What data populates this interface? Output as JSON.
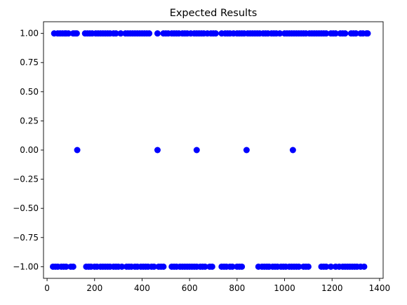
{
  "chart_data": {
    "type": "scatter",
    "title": "Expected Results",
    "xlabel": "",
    "ylabel": "",
    "xlim": [
      -15,
      1415
    ],
    "ylim": [
      -1.1,
      1.1
    ],
    "x_ticks": [
      0,
      200,
      400,
      600,
      800,
      1000,
      1200,
      1400
    ],
    "y_ticks": [
      1.0,
      0.75,
      0.5,
      0.25,
      0.0,
      -0.25,
      -0.5,
      -0.75,
      -1.0
    ],
    "y_tick_labels": [
      "1.00",
      "0.75",
      "0.50",
      "0.25",
      "0.00",
      "−0.25",
      "−0.50",
      "−0.75",
      "−1.00"
    ],
    "grid": false,
    "marker_color": "#0000ff",
    "series": [
      {
        "points": [
          [
            30,
            1
          ],
          [
            45,
            1
          ],
          [
            55,
            1
          ],
          [
            65,
            1
          ],
          [
            75,
            1
          ],
          [
            80,
            1
          ],
          [
            90,
            1
          ],
          [
            110,
            1
          ],
          [
            118,
            1
          ],
          [
            125,
            1
          ],
          [
            160,
            1
          ],
          [
            170,
            1
          ],
          [
            180,
            1
          ],
          [
            190,
            1
          ],
          [
            205,
            1
          ],
          [
            215,
            1
          ],
          [
            225,
            1
          ],
          [
            235,
            1
          ],
          [
            245,
            1
          ],
          [
            255,
            1
          ],
          [
            265,
            1
          ],
          [
            280,
            1
          ],
          [
            290,
            1
          ],
          [
            310,
            1
          ],
          [
            330,
            1
          ],
          [
            340,
            1
          ],
          [
            350,
            1
          ],
          [
            360,
            1
          ],
          [
            370,
            1
          ],
          [
            380,
            1
          ],
          [
            390,
            1
          ],
          [
            400,
            1
          ],
          [
            410,
            1
          ],
          [
            420,
            1
          ],
          [
            430,
            1
          ],
          [
            465,
            1
          ],
          [
            490,
            1
          ],
          [
            500,
            1
          ],
          [
            510,
            1
          ],
          [
            525,
            1
          ],
          [
            535,
            1
          ],
          [
            545,
            1
          ],
          [
            555,
            1
          ],
          [
            570,
            1
          ],
          [
            580,
            1
          ],
          [
            590,
            1
          ],
          [
            605,
            1
          ],
          [
            620,
            1
          ],
          [
            630,
            1
          ],
          [
            640,
            1
          ],
          [
            650,
            1
          ],
          [
            660,
            1
          ],
          [
            675,
            1
          ],
          [
            690,
            1
          ],
          [
            700,
            1
          ],
          [
            710,
            1
          ],
          [
            735,
            1
          ],
          [
            750,
            1
          ],
          [
            760,
            1
          ],
          [
            770,
            1
          ],
          [
            785,
            1
          ],
          [
            800,
            1
          ],
          [
            810,
            1
          ],
          [
            820,
            1
          ],
          [
            830,
            1
          ],
          [
            845,
            1
          ],
          [
            855,
            1
          ],
          [
            865,
            1
          ],
          [
            875,
            1
          ],
          [
            885,
            1
          ],
          [
            895,
            1
          ],
          [
            910,
            1
          ],
          [
            920,
            1
          ],
          [
            930,
            1
          ],
          [
            945,
            1
          ],
          [
            955,
            1
          ],
          [
            965,
            1
          ],
          [
            980,
            1
          ],
          [
            1000,
            1
          ],
          [
            1010,
            1
          ],
          [
            1020,
            1
          ],
          [
            1030,
            1
          ],
          [
            1040,
            1
          ],
          [
            1050,
            1
          ],
          [
            1060,
            1
          ],
          [
            1070,
            1
          ],
          [
            1080,
            1
          ],
          [
            1090,
            1
          ],
          [
            1105,
            1
          ],
          [
            1115,
            1
          ],
          [
            1125,
            1
          ],
          [
            1135,
            1
          ],
          [
            1145,
            1
          ],
          [
            1155,
            1
          ],
          [
            1165,
            1
          ],
          [
            1175,
            1
          ],
          [
            1195,
            1
          ],
          [
            1205,
            1
          ],
          [
            1215,
            1
          ],
          [
            1235,
            1
          ],
          [
            1245,
            1
          ],
          [
            1255,
            1
          ],
          [
            1280,
            1
          ],
          [
            1290,
            1
          ],
          [
            1300,
            1
          ],
          [
            1320,
            1
          ],
          [
            1330,
            1
          ],
          [
            1345,
            1
          ],
          [
            1350,
            1
          ],
          [
            127,
            0
          ],
          [
            465,
            0
          ],
          [
            630,
            0
          ],
          [
            840,
            0
          ],
          [
            1035,
            0
          ],
          [
            25,
            -1
          ],
          [
            35,
            -1
          ],
          [
            45,
            -1
          ],
          [
            60,
            -1
          ],
          [
            70,
            -1
          ],
          [
            80,
            -1
          ],
          [
            100,
            -1
          ],
          [
            110,
            -1
          ],
          [
            165,
            -1
          ],
          [
            175,
            -1
          ],
          [
            185,
            -1
          ],
          [
            200,
            -1
          ],
          [
            210,
            -1
          ],
          [
            225,
            -1
          ],
          [
            235,
            -1
          ],
          [
            245,
            -1
          ],
          [
            255,
            -1
          ],
          [
            265,
            -1
          ],
          [
            280,
            -1
          ],
          [
            290,
            -1
          ],
          [
            300,
            -1
          ],
          [
            315,
            -1
          ],
          [
            335,
            -1
          ],
          [
            345,
            -1
          ],
          [
            355,
            -1
          ],
          [
            370,
            -1
          ],
          [
            380,
            -1
          ],
          [
            395,
            -1
          ],
          [
            405,
            -1
          ],
          [
            415,
            -1
          ],
          [
            425,
            -1
          ],
          [
            440,
            -1
          ],
          [
            450,
            -1
          ],
          [
            470,
            -1
          ],
          [
            480,
            -1
          ],
          [
            490,
            -1
          ],
          [
            525,
            -1
          ],
          [
            535,
            -1
          ],
          [
            545,
            -1
          ],
          [
            560,
            -1
          ],
          [
            570,
            -1
          ],
          [
            580,
            -1
          ],
          [
            590,
            -1
          ],
          [
            600,
            -1
          ],
          [
            610,
            -1
          ],
          [
            620,
            -1
          ],
          [
            630,
            -1
          ],
          [
            645,
            -1
          ],
          [
            655,
            -1
          ],
          [
            665,
            -1
          ],
          [
            685,
            -1
          ],
          [
            695,
            -1
          ],
          [
            735,
            -1
          ],
          [
            745,
            -1
          ],
          [
            755,
            -1
          ],
          [
            770,
            -1
          ],
          [
            780,
            -1
          ],
          [
            800,
            -1
          ],
          [
            810,
            -1
          ],
          [
            820,
            -1
          ],
          [
            890,
            -1
          ],
          [
            905,
            -1
          ],
          [
            915,
            -1
          ],
          [
            925,
            -1
          ],
          [
            935,
            -1
          ],
          [
            950,
            -1
          ],
          [
            960,
            -1
          ],
          [
            970,
            -1
          ],
          [
            985,
            -1
          ],
          [
            995,
            -1
          ],
          [
            1005,
            -1
          ],
          [
            1020,
            -1
          ],
          [
            1030,
            -1
          ],
          [
            1040,
            -1
          ],
          [
            1050,
            -1
          ],
          [
            1060,
            -1
          ],
          [
            1080,
            -1
          ],
          [
            1090,
            -1
          ],
          [
            1100,
            -1
          ],
          [
            1155,
            -1
          ],
          [
            1165,
            -1
          ],
          [
            1175,
            -1
          ],
          [
            1195,
            -1
          ],
          [
            1215,
            -1
          ],
          [
            1230,
            -1
          ],
          [
            1245,
            -1
          ],
          [
            1255,
            -1
          ],
          [
            1265,
            -1
          ],
          [
            1275,
            -1
          ],
          [
            1285,
            -1
          ],
          [
            1295,
            -1
          ],
          [
            1305,
            -1
          ],
          [
            1320,
            -1
          ],
          [
            1335,
            -1
          ]
        ]
      }
    ]
  }
}
